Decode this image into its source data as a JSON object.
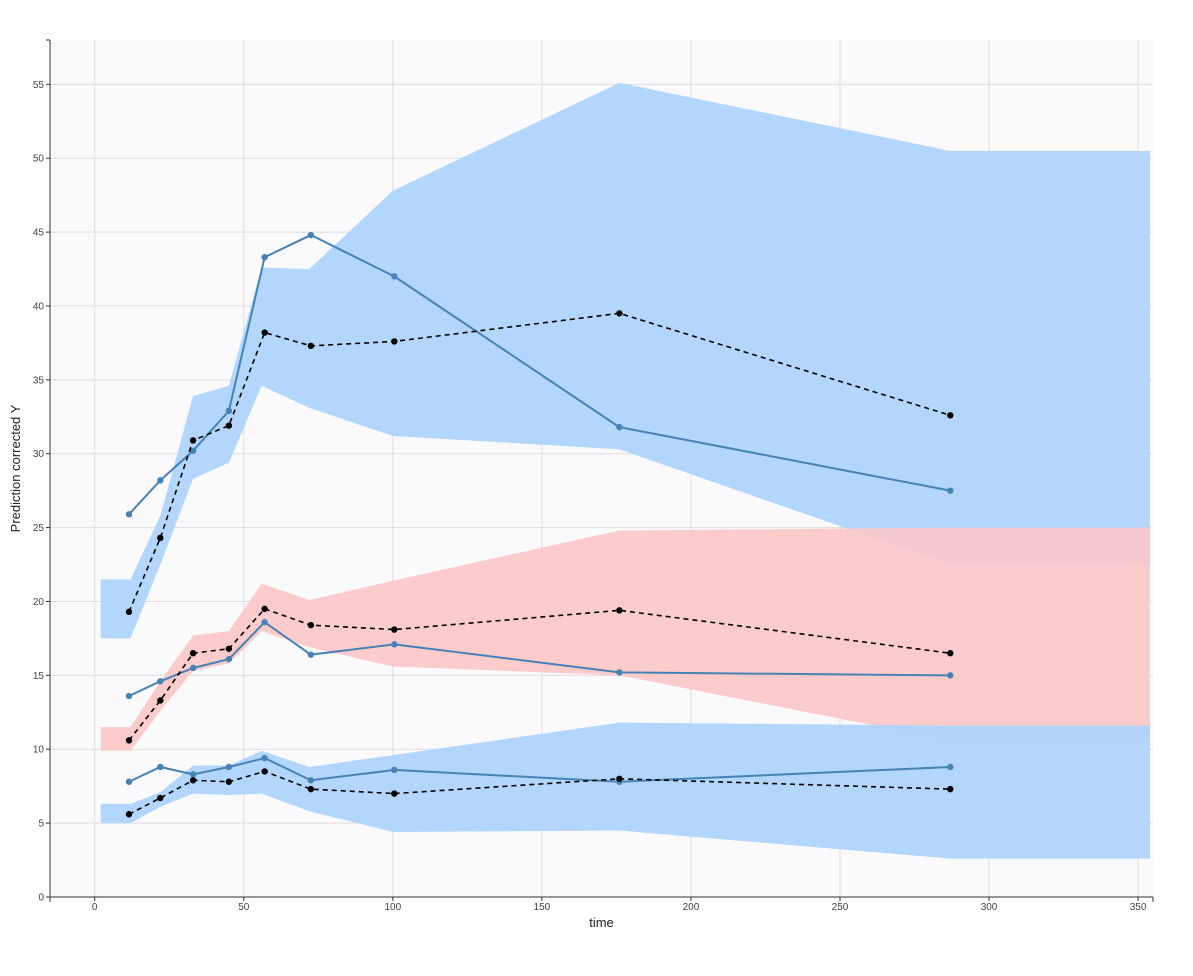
{
  "chart_data": {
    "type": "line",
    "title": "",
    "xlabel": "time",
    "ylabel": "Prediction corrected Y",
    "xlim": [
      -15,
      355
    ],
    "ylim": [
      0,
      58
    ],
    "x_ticks": [
      0,
      50,
      100,
      150,
      200,
      250,
      300,
      350
    ],
    "y_ticks": [
      0,
      5,
      10,
      15,
      20,
      25,
      30,
      35,
      40,
      45,
      50,
      55
    ],
    "grid": true,
    "legend": "none",
    "colors": {
      "observed": "#4682b4",
      "predicted": "#000000",
      "band_outer": "#aed4fe",
      "band_median": "#fcc6c8",
      "plot_background": "#fafafd",
      "grid": "#dddddd"
    },
    "x": [
      11.5,
      22,
      33,
      45,
      57,
      72.5,
      100.5,
      176,
      287
    ],
    "bands": [
      {
        "role": "upper",
        "color": "#aed4fe",
        "x": [
          2,
          12,
          22,
          33,
          45,
          56,
          72,
          100,
          176,
          287,
          354
        ],
        "lower": [
          17.5,
          17.5,
          22.5,
          28.3,
          29.4,
          34.6,
          33.1,
          31.2,
          30.3,
          22.5,
          22.5
        ],
        "upper": [
          21.5,
          21.5,
          25.8,
          33.9,
          34.6,
          42.6,
          42.5,
          47.8,
          55.1,
          50.5,
          50.5
        ]
      },
      {
        "role": "median",
        "color": "#fcc6c8",
        "x": [
          2,
          12,
          22,
          33,
          45,
          56,
          72,
          100,
          176,
          287,
          354
        ],
        "lower": [
          9.9,
          9.9,
          12.6,
          15.3,
          15.8,
          18.0,
          16.9,
          15.6,
          15.0,
          10.6,
          10.6
        ],
        "upper": [
          11.5,
          11.5,
          14.6,
          17.7,
          18.0,
          21.2,
          20.1,
          21.4,
          24.8,
          25.0,
          25.0
        ]
      },
      {
        "role": "lower",
        "color": "#aed4fe",
        "x": [
          2,
          12,
          22,
          33,
          45,
          56,
          72,
          100,
          176,
          287,
          354
        ],
        "lower": [
          5.0,
          5.0,
          6.1,
          7.0,
          6.9,
          7.0,
          5.8,
          4.4,
          4.5,
          2.6,
          2.6
        ],
        "upper": [
          6.3,
          6.3,
          7.1,
          8.9,
          8.9,
          9.9,
          8.8,
          9.6,
          11.8,
          11.6,
          11.6
        ]
      }
    ],
    "series": [
      {
        "role": "observed-upper",
        "style": "solid",
        "color": "#4682b4",
        "values": [
          25.9,
          28.2,
          30.2,
          32.9,
          43.3,
          44.8,
          42.0,
          31.8,
          27.5
        ]
      },
      {
        "role": "observed-median",
        "style": "solid",
        "color": "#4682b4",
        "values": [
          13.6,
          14.6,
          15.5,
          16.1,
          18.6,
          16.4,
          17.1,
          15.2,
          15.0
        ]
      },
      {
        "role": "observed-lower",
        "style": "solid",
        "color": "#4682b4",
        "values": [
          7.8,
          8.8,
          8.3,
          8.8,
          9.4,
          7.9,
          8.6,
          7.8,
          8.8
        ]
      },
      {
        "role": "predicted-upper",
        "style": "dashed",
        "color": "#000000",
        "values": [
          19.3,
          24.3,
          30.9,
          31.9,
          38.2,
          37.3,
          37.6,
          39.5,
          32.6
        ]
      },
      {
        "role": "predicted-median",
        "style": "dashed",
        "color": "#000000",
        "values": [
          10.6,
          13.3,
          16.5,
          16.8,
          19.5,
          18.4,
          18.1,
          19.4,
          16.5
        ]
      },
      {
        "role": "predicted-lower",
        "style": "dashed",
        "color": "#000000",
        "values": [
          5.6,
          6.7,
          7.9,
          7.8,
          8.5,
          7.3,
          7.0,
          8.0,
          7.3
        ]
      }
    ]
  }
}
